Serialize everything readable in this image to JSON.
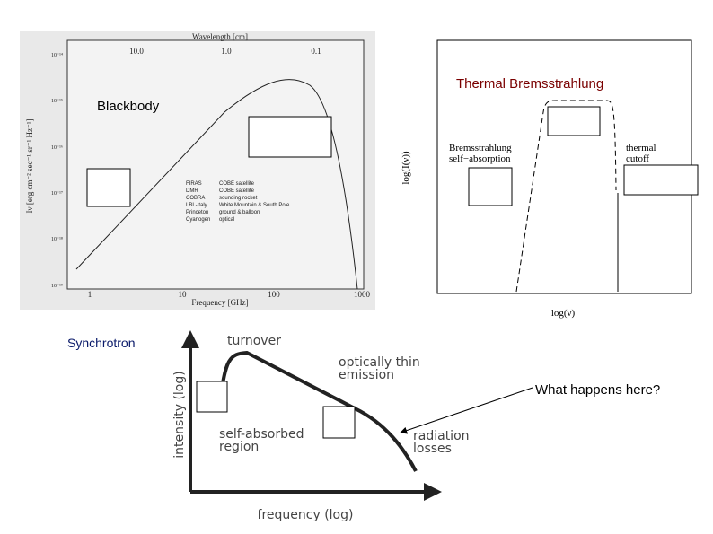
{
  "blackbody": {
    "label": "Blackbody",
    "top_axis_label": "Wavelength [cm]",
    "top_ticks": [
      "10.0",
      "1.0",
      "0.1"
    ],
    "y_axis_label": "Iν [erg cm⁻² sec⁻¹ sr⁻¹ Hz⁻¹]",
    "y_ticks": [
      "10⁻¹⁴",
      "10⁻¹⁵",
      "10⁻¹⁶",
      "10⁻¹⁷",
      "10⁻¹⁸",
      "10⁻¹⁹"
    ],
    "x_ticks": [
      "1",
      "10",
      "100",
      "1000"
    ],
    "x_axis_label": "Frequency [GHz]",
    "legend": [
      [
        "FIRAS",
        "COBE satellite"
      ],
      [
        "DMR",
        "COBE satellite"
      ],
      [
        "COBRA",
        "sounding rocket"
      ],
      [
        "LBL-Italy",
        "White Mountain & South Pole"
      ],
      [
        "Princeton",
        "ground & balloon"
      ],
      [
        "Cyanogen",
        "optical"
      ]
    ]
  },
  "bremsstrahlung": {
    "title": "Thermal Bremsstrahlung",
    "self_absorption": [
      "Bremsstrahlung",
      "self−absorption"
    ],
    "cutoff": [
      "thermal",
      "cutoff"
    ],
    "y_axis_label": "log(I(ν))",
    "x_axis_label": "log(ν)"
  },
  "synchrotron": {
    "label": "Synchrotron",
    "turnover": "turnover",
    "thin": [
      "optically thin",
      "emission"
    ],
    "self_absorbed": [
      "self-absorbed",
      "region"
    ],
    "losses": [
      "radiation",
      "losses"
    ],
    "y_axis_label": "intensity (log)",
    "x_axis_label": "frequency (log)",
    "question": "What happens here?"
  }
}
